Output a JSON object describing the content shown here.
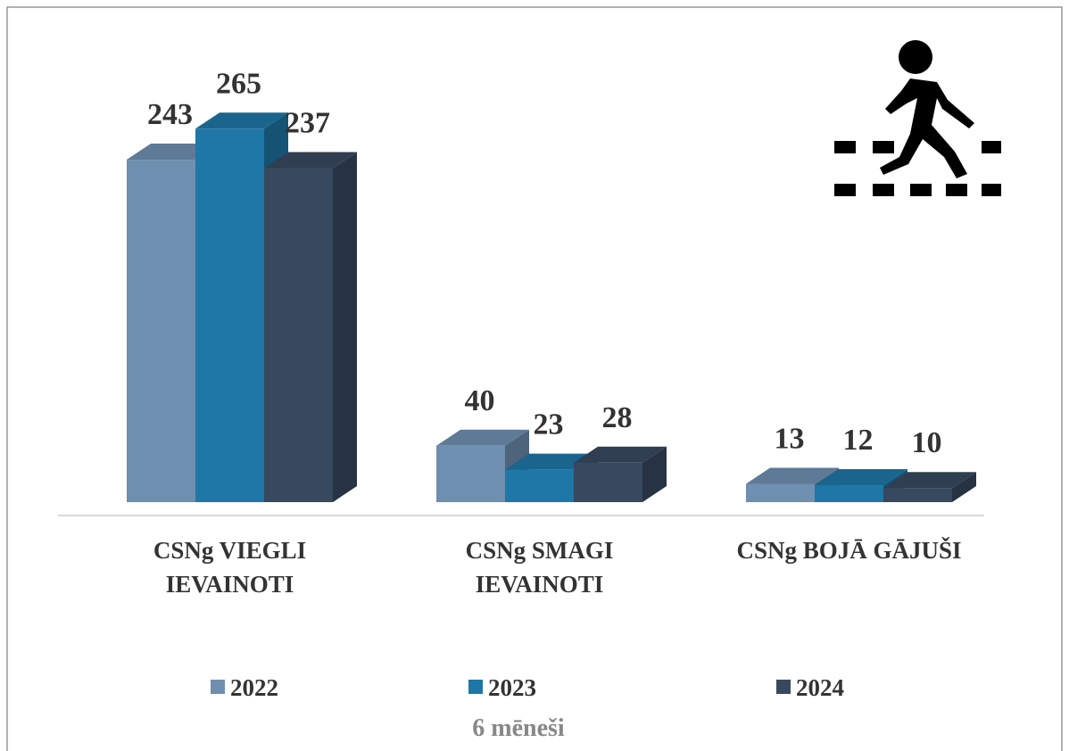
{
  "chart_data": {
    "type": "bar",
    "subtitle": "6 mēneši",
    "categories": [
      "CSNg VIEGLI IEVAINOTI",
      "CSNg SMAGI IEVAINOTI",
      "CSNg BOJĀ GĀJUŠI"
    ],
    "series": [
      {
        "name": "2022",
        "color": "#6f8fb0",
        "values": [
          243,
          40,
          13
        ]
      },
      {
        "name": "2023",
        "color": "#1e77a6",
        "values": [
          265,
          23,
          12
        ]
      },
      {
        "name": "2024",
        "color": "#37495f",
        "values": [
          237,
          28,
          10
        ]
      }
    ],
    "legend": "bottom"
  }
}
